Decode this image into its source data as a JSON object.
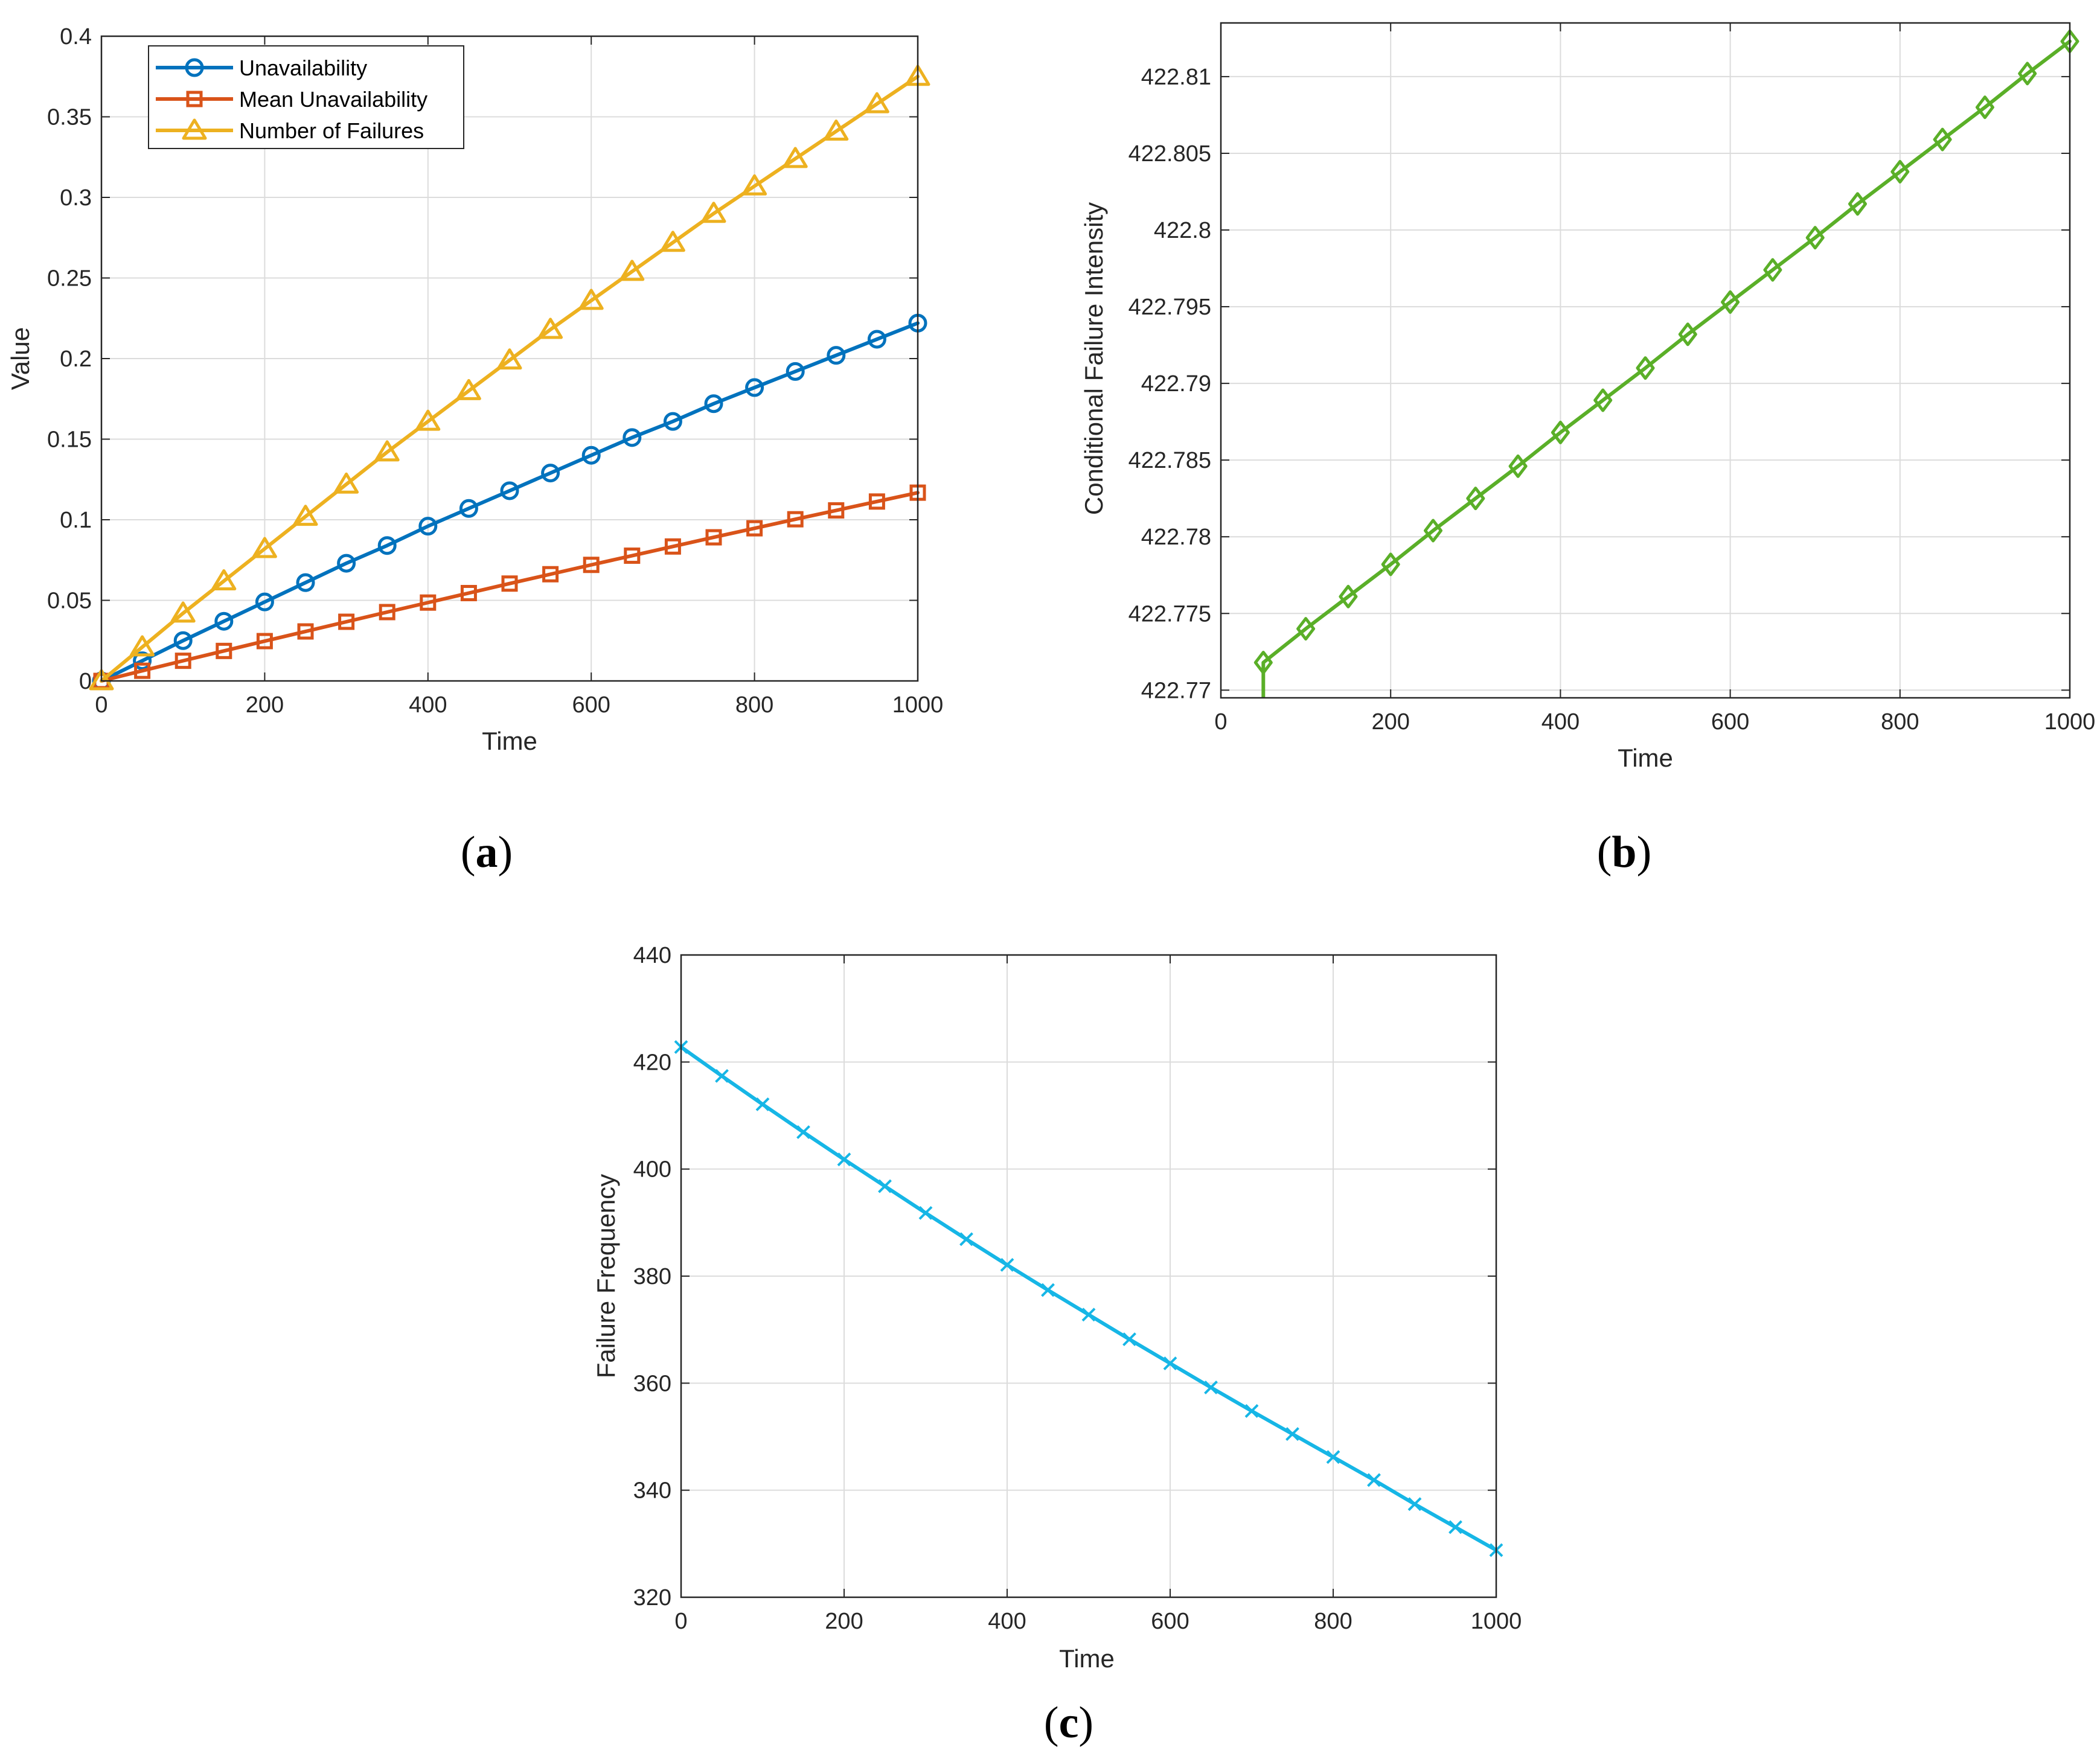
{
  "chart_data": [
    {
      "type": "line",
      "panel": "a",
      "panel_label": [
        "(",
        "a",
        ")"
      ],
      "xlabel": "Time",
      "ylabel": "Value",
      "xlim": [
        0,
        1000
      ],
      "ylim": [
        0,
        0.4
      ],
      "xticks": [
        0,
        200,
        400,
        600,
        800,
        1000
      ],
      "xtick_labels": [
        "0",
        "200",
        "400",
        "600",
        "800",
        "1000"
      ],
      "yticks": [
        0,
        0.05,
        0.1,
        0.15,
        0.2,
        0.25,
        0.3,
        0.35,
        0.4
      ],
      "ytick_labels": [
        "0",
        "0.05",
        "0.1",
        "0.15",
        "0.2",
        "0.25",
        "0.3",
        "0.35",
        "0.4"
      ],
      "grid": true,
      "legend_position": "top-left",
      "x": [
        0,
        50,
        100,
        150,
        200,
        250,
        300,
        350,
        400,
        450,
        500,
        550,
        600,
        650,
        700,
        750,
        800,
        850,
        900,
        950,
        1000
      ],
      "series": [
        {
          "name": "Unavailability",
          "color": "#0072BD",
          "marker": "circle",
          "values": [
            0,
            0.0125,
            0.025,
            0.037,
            0.049,
            0.061,
            0.073,
            0.084,
            0.096,
            0.107,
            0.118,
            0.129,
            0.14,
            0.151,
            0.161,
            0.172,
            0.182,
            0.192,
            0.202,
            0.212,
            0.222
          ]
        },
        {
          "name": "Mean Unavailability",
          "color": "#D95319",
          "marker": "square",
          "values": [
            0,
            0.0063,
            0.0125,
            0.0186,
            0.0247,
            0.0307,
            0.0367,
            0.0427,
            0.0486,
            0.0545,
            0.0604,
            0.0662,
            0.072,
            0.0777,
            0.0834,
            0.0891,
            0.0947,
            0.1003,
            0.1058,
            0.1113,
            0.1168
          ]
        },
        {
          "name": "Number of Failures",
          "color": "#EDB120",
          "marker": "triangle",
          "values": [
            0,
            0.021,
            0.042,
            0.062,
            0.082,
            0.102,
            0.122,
            0.142,
            0.161,
            0.18,
            0.199,
            0.218,
            0.236,
            0.254,
            0.272,
            0.29,
            0.307,
            0.324,
            0.341,
            0.358,
            0.375
          ]
        }
      ]
    },
    {
      "type": "line",
      "panel": "b",
      "panel_label": [
        "(",
        "b",
        ")"
      ],
      "xlabel": "Time",
      "ylabel": "Conditional Failure Intensity",
      "xlim": [
        0,
        1000
      ],
      "ylim": [
        422.7695,
        422.8135
      ],
      "xticks": [
        0,
        200,
        400,
        600,
        800,
        1000
      ],
      "xtick_labels": [
        "0",
        "200",
        "400",
        "600",
        "800",
        "1000"
      ],
      "yticks": [
        422.77,
        422.775,
        422.78,
        422.785,
        422.79,
        422.795,
        422.8,
        422.805,
        422.81
      ],
      "ytick_labels": [
        "422.77",
        "422.775",
        "422.78",
        "422.785",
        "422.79",
        "422.795",
        "422.8",
        "422.805",
        "422.81"
      ],
      "grid": true,
      "x": [
        50,
        100,
        150,
        200,
        250,
        300,
        350,
        400,
        450,
        500,
        550,
        600,
        650,
        700,
        750,
        800,
        850,
        900,
        950,
        1000
      ],
      "series": [
        {
          "name": "Conditional Failure Intensity",
          "color": "#5AAF28",
          "marker": "diamond",
          "values": [
            422.7718,
            422.774,
            422.7761,
            422.7782,
            422.7804,
            422.7825,
            422.7846,
            422.7868,
            422.7889,
            422.791,
            422.7932,
            422.7953,
            422.7974,
            422.7995,
            422.8017,
            422.8038,
            422.8059,
            422.808,
            422.8102,
            422.8123
          ]
        }
      ]
    },
    {
      "type": "line",
      "panel": "c",
      "panel_label": [
        "(",
        "c",
        ")"
      ],
      "xlabel": "Time",
      "ylabel": "Failure Frequency",
      "xlim": [
        0,
        1000
      ],
      "ylim": [
        320,
        440
      ],
      "xticks": [
        0,
        200,
        400,
        600,
        800,
        1000
      ],
      "xtick_labels": [
        "0",
        "200",
        "400",
        "600",
        "800",
        "1000"
      ],
      "yticks": [
        320,
        340,
        360,
        380,
        400,
        420,
        440
      ],
      "ytick_labels": [
        "320",
        "340",
        "360",
        "380",
        "400",
        "420",
        "440"
      ],
      "grid": true,
      "x": [
        0,
        50,
        100,
        150,
        200,
        250,
        300,
        350,
        400,
        450,
        500,
        550,
        600,
        650,
        700,
        750,
        800,
        850,
        900,
        950,
        1000
      ],
      "series": [
        {
          "name": "Failure Frequency",
          "color": "#16B6E6",
          "marker": "x",
          "values": [
            422.8,
            417.4,
            412.1,
            406.9,
            401.8,
            396.8,
            391.8,
            386.9,
            382.1,
            377.4,
            372.8,
            368.2,
            363.7,
            359.2,
            354.8,
            350.5,
            346.2,
            341.9,
            337.4,
            333.1,
            328.8
          ]
        }
      ]
    }
  ]
}
